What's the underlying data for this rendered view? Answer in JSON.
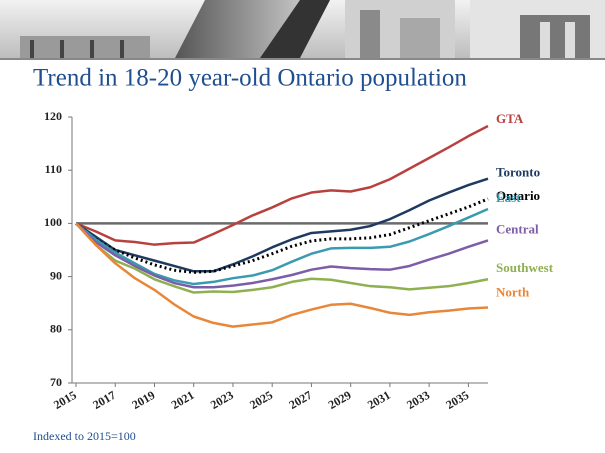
{
  "chart_data": {
    "type": "line",
    "title": "Trend in 18-20 year-old Ontario population",
    "note": "Indexed to 2015=100",
    "x": [
      2015,
      2016,
      2017,
      2018,
      2019,
      2020,
      2021,
      2022,
      2023,
      2024,
      2025,
      2026,
      2027,
      2028,
      2029,
      2030,
      2031,
      2032,
      2033,
      2034,
      2035,
      2036
    ],
    "xlim": [
      2015,
      2036
    ],
    "xticks": [
      2015,
      2017,
      2019,
      2021,
      2023,
      2025,
      2027,
      2029,
      2031,
      2033,
      2035
    ],
    "ylim": [
      70,
      120
    ],
    "yticks": [
      70,
      80,
      90,
      100,
      110,
      120
    ],
    "reference_value": 100,
    "grid": false,
    "series": [
      {
        "name": "GTA",
        "color": "#b8413f",
        "values": [
          100,
          98.5,
          96.8,
          96.5,
          96,
          96.3,
          96.4,
          98,
          99.7,
          101.5,
          103,
          104.7,
          105.8,
          106.2,
          106,
          106.8,
          108.3,
          110.3,
          112.3,
          114.3,
          116.4,
          118.3
        ]
      },
      {
        "name": "Toronto",
        "color": "#1f3a60",
        "values": [
          100,
          97.5,
          95,
          94,
          93,
          92,
          91,
          91,
          92.3,
          93.8,
          95.5,
          97,
          98.2,
          98.5,
          98.8,
          99.5,
          100.8,
          102.5,
          104.3,
          105.8,
          107.2,
          108.4
        ]
      },
      {
        "name": "Ontario",
        "color": "#000000",
        "dashed": true,
        "values": [
          100,
          97,
          95,
          93.5,
          92.2,
          91.2,
          90.8,
          91,
          92,
          93,
          94.3,
          95.7,
          96.7,
          97.1,
          97.1,
          97.3,
          97.9,
          99.2,
          100.5,
          101.8,
          103.1,
          104.6
        ]
      },
      {
        "name": "East",
        "color": "#3a9bb0",
        "values": [
          100,
          97,
          94.5,
          92.5,
          90.5,
          89.3,
          88.6,
          89,
          89.7,
          90.2,
          91.2,
          92.8,
          94.3,
          95.3,
          95.4,
          95.4,
          95.6,
          96.6,
          98,
          99.5,
          101.1,
          102.7
        ]
      },
      {
        "name": "Central",
        "color": "#7b5ea7",
        "values": [
          100,
          96.5,
          94,
          92,
          90.2,
          88.8,
          88,
          88,
          88.3,
          88.8,
          89.5,
          90.3,
          91.3,
          91.9,
          91.6,
          91.4,
          91.3,
          92,
          93.2,
          94.3,
          95.6,
          96.8
        ]
      },
      {
        "name": "Southwest",
        "color": "#8fb050",
        "values": [
          100,
          96,
          93,
          91.5,
          89.5,
          88.2,
          87,
          87.2,
          87.1,
          87.5,
          88,
          89,
          89.6,
          89.4,
          88.8,
          88.2,
          88,
          87.6,
          87.9,
          88.2,
          88.8,
          89.5
        ]
      },
      {
        "name": "North",
        "color": "#e8873a",
        "values": [
          100,
          96,
          92.5,
          89.7,
          87.5,
          84.8,
          82.5,
          81.3,
          80.6,
          81,
          81.4,
          82.8,
          83.8,
          84.7,
          84.9,
          84.1,
          83.2,
          82.8,
          83.3,
          83.6,
          84,
          84.2
        ]
      }
    ]
  }
}
